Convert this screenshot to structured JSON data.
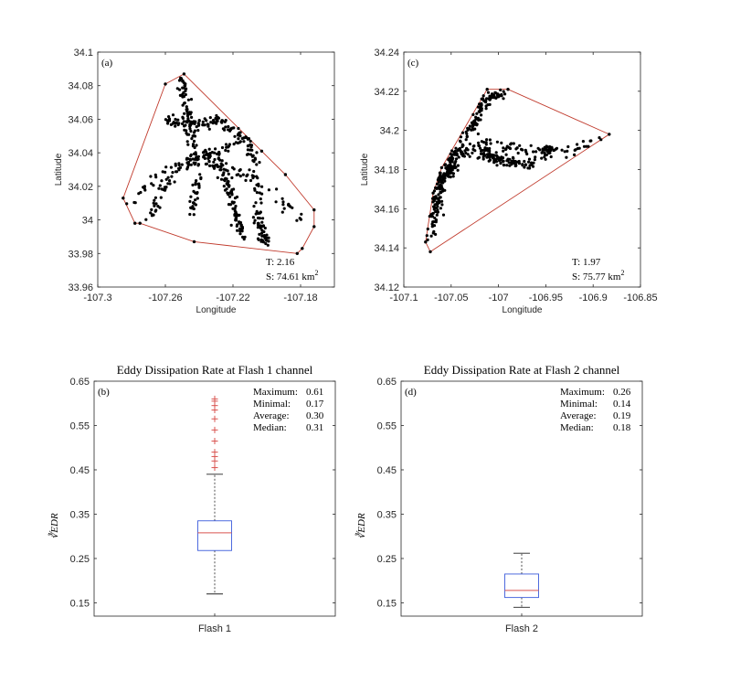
{
  "chart_data": [
    {
      "panel_label": "(a)",
      "type": "scatter",
      "xlabel": "Longitude",
      "ylabel": "Latitude",
      "xlim": [
        -107.3,
        -107.16
      ],
      "ylim": [
        33.96,
        34.1
      ],
      "xticks": [
        "-107.3",
        "-107.26",
        "-107.22",
        "-107.18"
      ],
      "yticks": [
        "33.96",
        "33.98",
        "34",
        "34.02",
        "34.04",
        "34.06",
        "34.08",
        "34.1"
      ],
      "hull": [
        [
          -107.285,
          34.013
        ],
        [
          -107.278,
          33.998
        ],
        [
          -107.275,
          33.998
        ],
        [
          -107.243,
          33.987
        ],
        [
          -107.182,
          33.98
        ],
        [
          -107.179,
          33.983
        ],
        [
          -107.172,
          33.996
        ],
        [
          -107.172,
          34.006
        ],
        [
          -107.189,
          34.027
        ],
        [
          -107.203,
          34.041
        ],
        [
          -107.249,
          34.087
        ],
        [
          -107.26,
          34.081
        ]
      ],
      "annotation_T": "T: 2.16",
      "annotation_S": "S: 74.61 km",
      "annotation_S_sup": "2",
      "point_count": 560
    },
    {
      "panel_label": "(c)",
      "type": "scatter",
      "xlabel": "Longitude",
      "ylabel": "Latitude",
      "xlim": [
        -107.1,
        -106.85
      ],
      "ylim": [
        34.12,
        34.24
      ],
      "xticks": [
        "-107.1",
        "-107.05",
        "-107",
        "-106.95",
        "-106.9",
        "-106.85"
      ],
      "yticks": [
        "34.12",
        "34.14",
        "34.16",
        "34.18",
        "34.2",
        "34.22",
        "34.24"
      ],
      "hull": [
        [
          -107.077,
          34.143
        ],
        [
          -107.072,
          34.138
        ],
        [
          -106.883,
          34.198
        ],
        [
          -106.99,
          34.221
        ],
        [
          -107.012,
          34.221
        ],
        [
          -107.06,
          34.181
        ],
        [
          -107.069,
          34.168
        ]
      ],
      "annotation_T": "T: 1.97",
      "annotation_S": "S: 75.77 km",
      "annotation_S_sup": "2",
      "point_count": 520
    },
    {
      "panel_label": "(b)",
      "type": "box",
      "title": "Eddy Dissipation Rate at Flash 1 channel",
      "ylabel": "∛EDR",
      "category": "Flash 1",
      "ylim": [
        0.12,
        0.65
      ],
      "yticks": [
        "0.15",
        "0.25",
        "0.35",
        "0.45",
        "0.55",
        "0.65"
      ],
      "box": {
        "min": 0.17,
        "q1": 0.268,
        "median": 0.308,
        "q3": 0.335,
        "whisker_high": 0.44,
        "max": 0.61
      },
      "outliers": [
        0.455,
        0.47,
        0.48,
        0.49,
        0.515,
        0.54,
        0.565,
        0.585,
        0.595,
        0.605,
        0.61
      ],
      "stats": [
        {
          "label": "Maximum:",
          "value": "0.61"
        },
        {
          "label": "Minimal:",
          "value": "0.17"
        },
        {
          "label": "Average:",
          "value": "0.30"
        },
        {
          "label": "Median:",
          "value": "0.31"
        }
      ]
    },
    {
      "panel_label": "(d)",
      "type": "box",
      "title": "Eddy Dissipation Rate at Flash 2 channel",
      "ylabel": "∛EDR",
      "category": "Flash 2",
      "ylim": [
        0.12,
        0.65
      ],
      "yticks": [
        "0.15",
        "0.25",
        "0.35",
        "0.45",
        "0.55",
        "0.65"
      ],
      "box": {
        "min": 0.14,
        "q1": 0.162,
        "median": 0.178,
        "q3": 0.215,
        "whisker_high": 0.262,
        "max": 0.26
      },
      "outliers": [],
      "stats": [
        {
          "label": "Maximum:",
          "value": "0.26"
        },
        {
          "label": "Minimal:",
          "value": "0.14"
        },
        {
          "label": "Average:",
          "value": "0.19"
        },
        {
          "label": "Median:",
          "value": "0.18"
        }
      ]
    }
  ],
  "colors": {
    "hull": "#c0392b",
    "points": "#000000",
    "box_edge": "#3b5bdb",
    "median": "#d9534f",
    "outlier": "#d9534f",
    "whisker": "#222222"
  }
}
